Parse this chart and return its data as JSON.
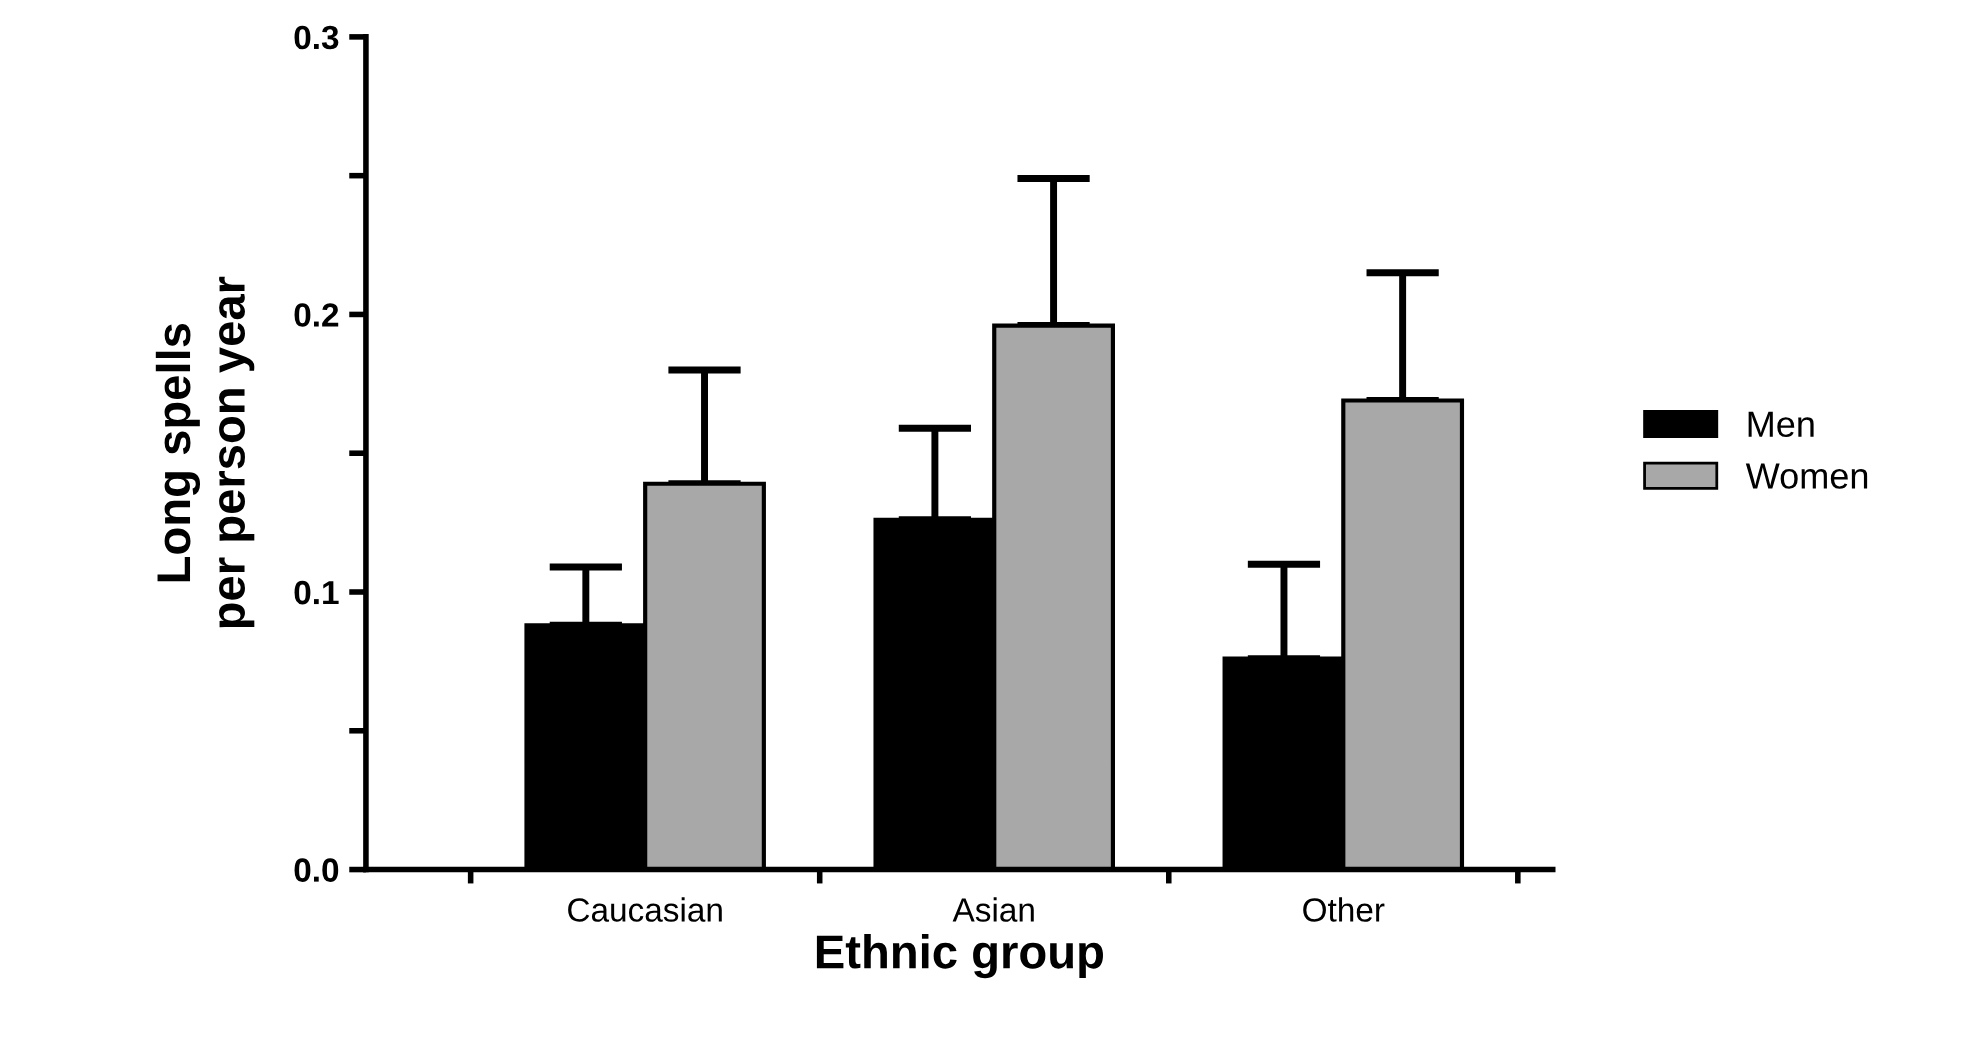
{
  "chart_data": {
    "type": "bar",
    "xlabel": "Ethnic group",
    "ylabel": "Long spells\nper person year",
    "categories": [
      "Caucasian",
      "Asian",
      "Other"
    ],
    "series": [
      {
        "name": "Men",
        "color": "#000000",
        "values": [
          0.088,
          0.126,
          0.076
        ],
        "errors": [
          [
            0.088,
            0.109
          ],
          [
            0.126,
            0.159
          ],
          [
            0.076,
            0.11
          ]
        ]
      },
      {
        "name": "Women",
        "color": "#a8a8a8",
        "values": [
          0.139,
          0.196,
          0.169
        ],
        "errors": [
          [
            0.139,
            0.18
          ],
          [
            0.196,
            0.249
          ],
          [
            0.169,
            0.215
          ]
        ]
      }
    ],
    "ylim": [
      0,
      0.3
    ],
    "yticks": [
      {
        "value": 0,
        "label": "0.0"
      },
      {
        "value": 0.05,
        "label": null
      },
      0.1,
      {
        "value": 0.15,
        "label": null
      },
      0.2,
      {
        "value": 0.25,
        "label": null
      },
      0.3
    ],
    "grid": false,
    "legend": "right"
  }
}
